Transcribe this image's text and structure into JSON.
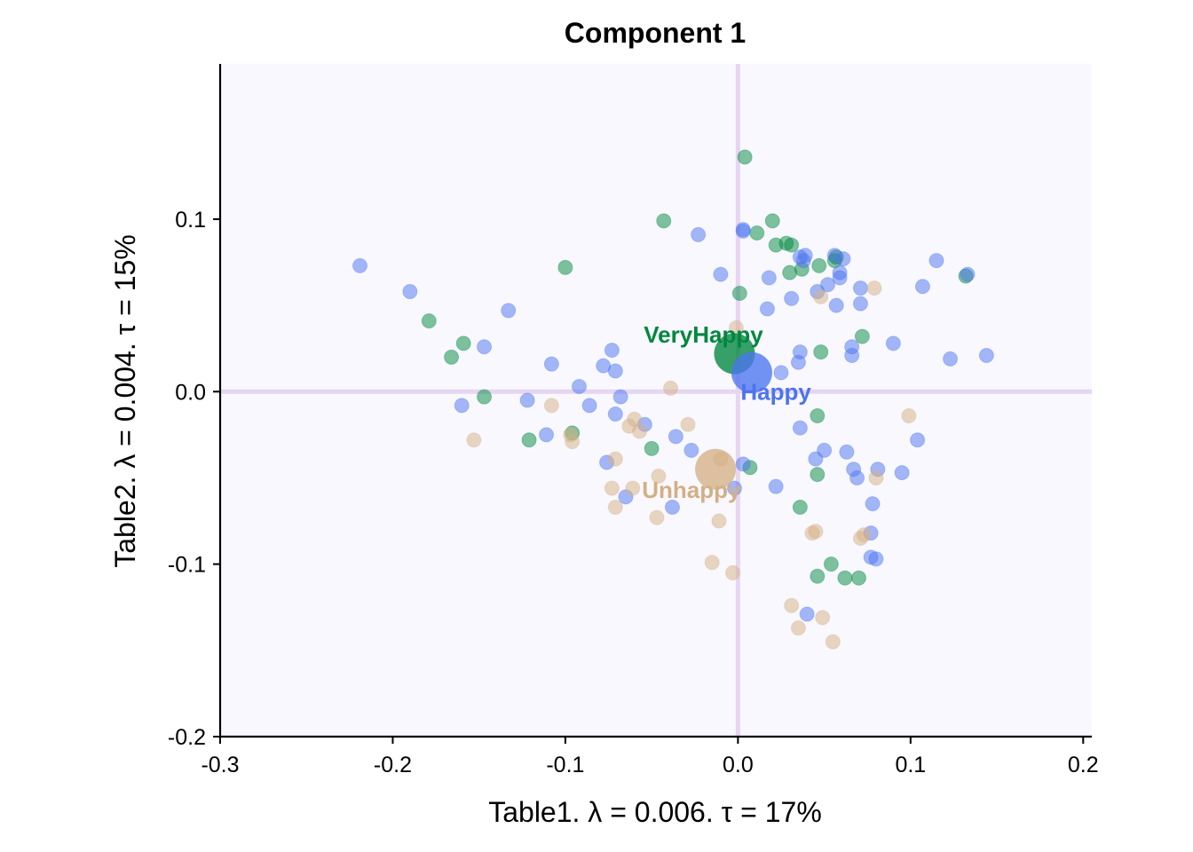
{
  "chart_data": {
    "type": "scatter",
    "title": "Component 1",
    "xlabel": "Table1.   λ = 0.006.  τ = 17%",
    "ylabel": "Table2.   λ = 0.004.  τ = 15%",
    "xlim": [
      -0.3,
      0.205
    ],
    "ylim": [
      -0.2,
      0.19
    ],
    "xticks": [
      -0.3,
      -0.2,
      -0.1,
      0.0,
      0.1,
      0.2
    ],
    "xtick_labels": [
      "-0.3",
      "-0.2",
      "-0.1",
      "0.0",
      "0.1",
      "0.2"
    ],
    "yticks": [
      -0.2,
      -0.1,
      0.0,
      0.1
    ],
    "ytick_labels": [
      "-0.2",
      "-0.1",
      "0.0",
      "0.1"
    ],
    "grid": false,
    "legend": "none",
    "reference_lines": {
      "x": 0.0,
      "y": 0.0,
      "color": "#e6d6f2"
    },
    "panel_background": "#f8f8fe",
    "categories": [
      {
        "name": "VeryHappy",
        "color": "#00873e",
        "x": -0.002,
        "y": 0.022,
        "label_x": -0.02,
        "label_y": 0.033
      },
      {
        "name": "Happy",
        "color": "#4b74f0",
        "x": 0.008,
        "y": 0.011,
        "label_x": 0.022,
        "label_y": 0.0
      },
      {
        "name": "Unhappy",
        "color": "#d3af84",
        "x": -0.013,
        "y": -0.045,
        "label_x": -0.027,
        "label_y": -0.057
      }
    ],
    "series": [
      {
        "name": "VeryHappy",
        "color": "#00873e",
        "points": [
          [
            0.004,
            0.136
          ],
          [
            -0.043,
            0.099
          ],
          [
            0.02,
            0.099
          ],
          [
            0.011,
            0.092
          ],
          [
            0.022,
            0.085
          ],
          [
            0.028,
            0.086
          ],
          [
            0.031,
            0.085
          ],
          [
            0.047,
            0.073
          ],
          [
            0.056,
            0.076
          ],
          [
            0.057,
            0.078
          ],
          [
            -0.1,
            0.072
          ],
          [
            0.03,
            0.069
          ],
          [
            0.037,
            0.071
          ],
          [
            0.132,
            0.067
          ],
          [
            0.001,
            0.057
          ],
          [
            -0.179,
            0.041
          ],
          [
            -0.159,
            0.028
          ],
          [
            -0.166,
            0.02
          ],
          [
            0.072,
            0.032
          ],
          [
            0.048,
            0.023
          ],
          [
            -0.147,
            -0.003
          ],
          [
            0.046,
            -0.014
          ],
          [
            -0.096,
            -0.024
          ],
          [
            -0.121,
            -0.028
          ],
          [
            -0.05,
            -0.033
          ],
          [
            0.007,
            -0.044
          ],
          [
            0.046,
            -0.048
          ],
          [
            0.036,
            -0.067
          ],
          [
            0.054,
            -0.1
          ],
          [
            0.046,
            -0.107
          ],
          [
            0.062,
            -0.108
          ],
          [
            0.07,
            -0.108
          ]
        ]
      },
      {
        "name": "Happy",
        "color": "#4b74f0",
        "points": [
          [
            -0.219,
            0.073
          ],
          [
            -0.19,
            0.058
          ],
          [
            -0.133,
            0.047
          ],
          [
            -0.147,
            0.026
          ],
          [
            -0.108,
            0.016
          ],
          [
            -0.073,
            0.024
          ],
          [
            -0.078,
            0.015
          ],
          [
            -0.071,
            0.012
          ],
          [
            -0.092,
            0.003
          ],
          [
            -0.068,
            -0.003
          ],
          [
            -0.122,
            -0.005
          ],
          [
            -0.16,
            -0.008
          ],
          [
            -0.086,
            -0.008
          ],
          [
            -0.071,
            -0.013
          ],
          [
            -0.111,
            -0.025
          ],
          [
            -0.036,
            -0.026
          ],
          [
            -0.054,
            -0.019
          ],
          [
            -0.027,
            -0.034
          ],
          [
            -0.076,
            -0.041
          ],
          [
            -0.065,
            -0.061
          ],
          [
            -0.038,
            -0.067
          ],
          [
            -0.023,
            0.091
          ],
          [
            0.003,
            0.094
          ],
          [
            0.003,
            0.093
          ],
          [
            0.039,
            0.079
          ],
          [
            0.036,
            0.078
          ],
          [
            0.038,
            0.076
          ],
          [
            0.056,
            0.079
          ],
          [
            0.061,
            0.077
          ],
          [
            0.059,
            0.069
          ],
          [
            0.059,
            0.066
          ],
          [
            -0.01,
            0.068
          ],
          [
            0.018,
            0.066
          ],
          [
            0.052,
            0.062
          ],
          [
            0.046,
            0.058
          ],
          [
            0.071,
            0.06
          ],
          [
            0.107,
            0.061
          ],
          [
            0.115,
            0.076
          ],
          [
            0.133,
            0.068
          ],
          [
            0.017,
            0.048
          ],
          [
            0.031,
            0.054
          ],
          [
            0.057,
            0.05
          ],
          [
            0.071,
            0.051
          ],
          [
            0.066,
            0.026
          ],
          [
            0.066,
            0.021
          ],
          [
            0.036,
            0.023
          ],
          [
            0.035,
            0.017
          ],
          [
            0.025,
            0.011
          ],
          [
            0.09,
            0.028
          ],
          [
            0.123,
            0.019
          ],
          [
            0.144,
            0.021
          ],
          [
            0.036,
            -0.021
          ],
          [
            0.05,
            -0.034
          ],
          [
            0.063,
            -0.035
          ],
          [
            0.045,
            -0.039
          ],
          [
            0.067,
            -0.045
          ],
          [
            0.069,
            -0.05
          ],
          [
            0.081,
            -0.045
          ],
          [
            0.095,
            -0.047
          ],
          [
            0.104,
            -0.028
          ],
          [
            0.022,
            -0.055
          ],
          [
            0.078,
            -0.065
          ],
          [
            0.077,
            -0.082
          ],
          [
            0.077,
            -0.096
          ],
          [
            0.08,
            -0.097
          ],
          [
            0.04,
            -0.129
          ],
          [
            0.003,
            -0.042
          ],
          [
            -0.002,
            -0.056
          ]
        ]
      },
      {
        "name": "Unhappy",
        "color": "#d3af84",
        "points": [
          [
            0.079,
            0.06
          ],
          [
            0.048,
            0.055
          ],
          [
            -0.001,
            0.037
          ],
          [
            -0.039,
            0.002
          ],
          [
            -0.108,
            -0.008
          ],
          [
            -0.153,
            -0.028
          ],
          [
            -0.097,
            -0.025
          ],
          [
            -0.096,
            -0.029
          ],
          [
            -0.06,
            -0.016
          ],
          [
            -0.063,
            -0.02
          ],
          [
            -0.057,
            -0.023
          ],
          [
            -0.029,
            -0.019
          ],
          [
            -0.071,
            -0.039
          ],
          [
            -0.046,
            -0.049
          ],
          [
            -0.01,
            -0.039
          ],
          [
            -0.073,
            -0.056
          ],
          [
            -0.071,
            -0.067
          ],
          [
            -0.061,
            -0.056
          ],
          [
            -0.047,
            -0.073
          ],
          [
            -0.011,
            -0.075
          ],
          [
            0.099,
            -0.014
          ],
          [
            0.08,
            -0.05
          ],
          [
            0.073,
            -0.083
          ],
          [
            0.071,
            -0.085
          ],
          [
            0.045,
            -0.081
          ],
          [
            0.043,
            -0.082
          ],
          [
            -0.015,
            -0.099
          ],
          [
            -0.003,
            -0.105
          ],
          [
            0.031,
            -0.124
          ],
          [
            0.035,
            -0.137
          ],
          [
            0.049,
            -0.131
          ],
          [
            0.055,
            -0.145
          ]
        ]
      }
    ]
  }
}
